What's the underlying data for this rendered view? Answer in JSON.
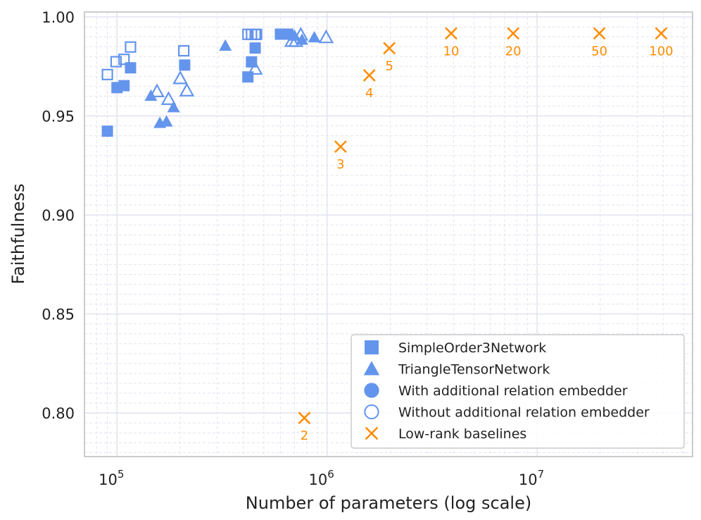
{
  "chart_data": {
    "type": "scatter",
    "xlabel": "Number of parameters (log scale)",
    "ylabel": "Faithfulness",
    "x_scale": "log",
    "xlim": [
      70000,
      55000000
    ],
    "ylim": [
      0.778,
      1.0025
    ],
    "y_ticks": [
      0.8,
      0.85,
      0.9,
      0.95,
      1.0
    ],
    "y_tick_labels": [
      "0.80",
      "0.85",
      "0.90",
      "0.95",
      "1.00"
    ],
    "x_tick_labels": [
      {
        "value": 100000,
        "base": "10",
        "exp": "5"
      },
      {
        "value": 1000000,
        "base": "10",
        "exp": "6"
      },
      {
        "value": 10000000,
        "base": "10",
        "exp": "7"
      }
    ],
    "grid": true,
    "colors": {
      "network": "#6495ED",
      "baseline": "#FF8C00",
      "grid": "#E3E3F2",
      "frame": "#CCCCCC"
    },
    "legend": {
      "position": "lower-right",
      "entries": [
        {
          "label": "SimpleOrder3Network",
          "marker": "square",
          "fill": "filled",
          "color": "#6495ED"
        },
        {
          "label": "TriangleTensorNetwork",
          "marker": "triangle",
          "fill": "filled",
          "color": "#6495ED"
        },
        {
          "label": "With additional relation embedder",
          "marker": "circle",
          "fill": "filled",
          "color": "#6495ED"
        },
        {
          "label": "Without additional relation embedder",
          "marker": "circle",
          "fill": "hollow",
          "color": "#6495ED"
        },
        {
          "label": "Low-rank baselines",
          "marker": "x",
          "fill": "filled",
          "color": "#FF8C00"
        }
      ]
    },
    "series": [
      {
        "name": "SimpleOrder3Network (with relation embedder)",
        "marker": "square",
        "fill": "filled",
        "color": "#6495ED",
        "x": [
          90000,
          100000,
          108000,
          116000,
          210000,
          420000,
          437000,
          455000,
          600000,
          620000,
          650000
        ],
        "y": [
          0.9423,
          0.9643,
          0.9653,
          0.9743,
          0.9757,
          0.9697,
          0.9773,
          0.9843,
          0.9913,
          0.9913,
          0.9913
        ]
      },
      {
        "name": "SimpleOrder3Network (without relation embedder)",
        "marker": "square",
        "fill": "hollow",
        "color": "#6495ED",
        "x": [
          90000,
          99000,
          108000,
          116000,
          208000,
          420000,
          437000,
          455000,
          462000
        ],
        "y": [
          0.9709,
          0.9774,
          0.9786,
          0.9848,
          0.9829,
          0.9912,
          0.9912,
          0.9912,
          0.9912
        ]
      },
      {
        "name": "TriangleTensorNetwork (with relation embedder)",
        "marker": "triangle",
        "fill": "filled",
        "color": "#6495ED",
        "x": [
          145000,
          160000,
          172000,
          186000,
          328000,
          700000,
          760000,
          870000
        ],
        "y": [
          0.9602,
          0.9465,
          0.9472,
          0.9544,
          0.9855,
          0.9905,
          0.9885,
          0.9897
        ]
      },
      {
        "name": "TriangleTensorNetwork (without relation embedder)",
        "marker": "triangle",
        "fill": "hollow",
        "color": "#6495ED",
        "x": [
          155000,
          176000,
          200000,
          215000,
          455000,
          680000,
          710000,
          750000,
          990000
        ],
        "y": [
          0.9624,
          0.9585,
          0.969,
          0.9628,
          0.9738,
          0.9878,
          0.9878,
          0.991,
          0.9897
        ]
      },
      {
        "name": "Low-rank baselines",
        "marker": "x",
        "color": "#FF8C00",
        "x": [
          780000,
          1160000,
          1590000,
          1980000,
          3900000,
          7700000,
          19800000,
          39000000
        ],
        "y": [
          0.7975,
          0.9345,
          0.9705,
          0.9842,
          0.9917,
          0.9917,
          0.9917,
          0.9917
        ],
        "point_labels": [
          "2",
          "3",
          "4",
          "5",
          "10",
          "20",
          "50",
          "100"
        ]
      }
    ]
  }
}
